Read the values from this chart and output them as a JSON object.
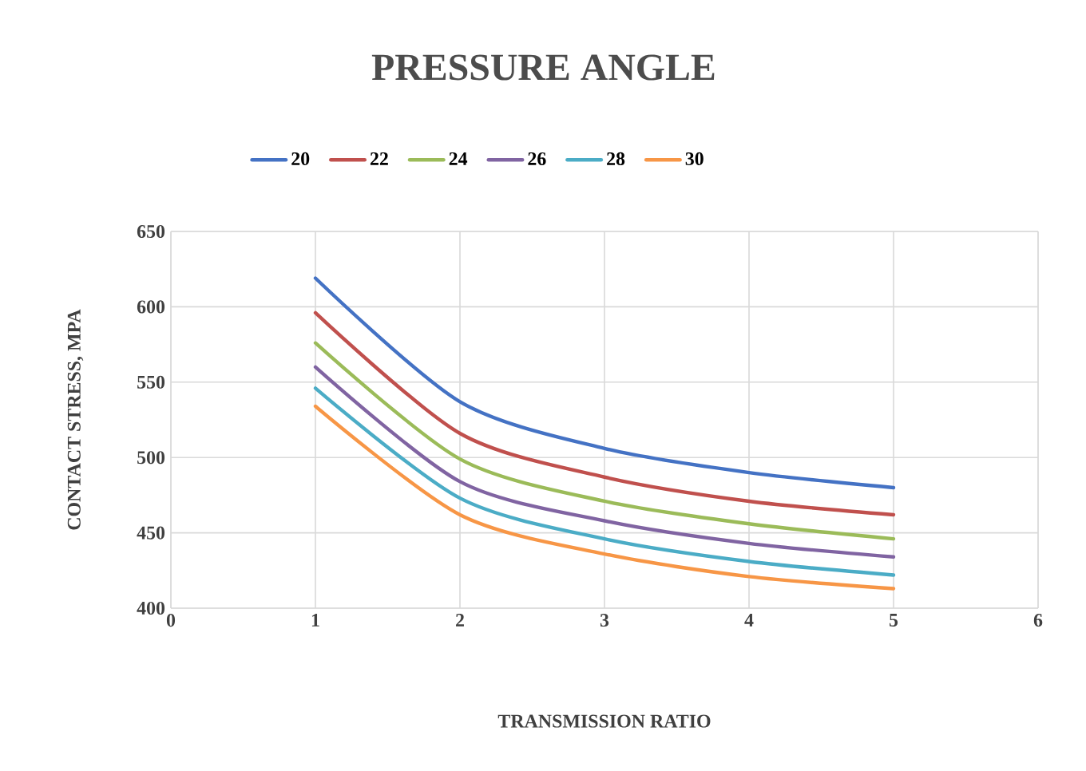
{
  "chart_data": {
    "type": "line",
    "title": "PRESSURE ANGLE",
    "xlabel": "TRANSMISSION RATIO",
    "ylabel": "CONTACT STRESS, MPA",
    "x": [
      1,
      2,
      3,
      4,
      5
    ],
    "series": [
      {
        "name": "20",
        "color": "#4472c4",
        "values": [
          619,
          537,
          506,
          490,
          480
        ]
      },
      {
        "name": "22",
        "color": "#c0504d",
        "values": [
          596,
          516,
          487,
          471,
          462
        ]
      },
      {
        "name": "24",
        "color": "#9bbb59",
        "values": [
          576,
          499,
          471,
          456,
          446
        ]
      },
      {
        "name": "26",
        "color": "#8064a2",
        "values": [
          560,
          484,
          458,
          443,
          434
        ]
      },
      {
        "name": "28",
        "color": "#4bacc6",
        "values": [
          546,
          473,
          446,
          431,
          422
        ]
      },
      {
        "name": "30",
        "color": "#f79646",
        "values": [
          534,
          462,
          436,
          421,
          413
        ]
      }
    ],
    "xlim": [
      0,
      6
    ],
    "xticks": [
      0,
      1,
      2,
      3,
      4,
      5,
      6
    ],
    "ylim": [
      400,
      650
    ],
    "yticks": [
      400,
      450,
      500,
      550,
      600,
      650
    ],
    "grid": true,
    "legend": "top",
    "marker": "none",
    "line_style": "solid"
  }
}
